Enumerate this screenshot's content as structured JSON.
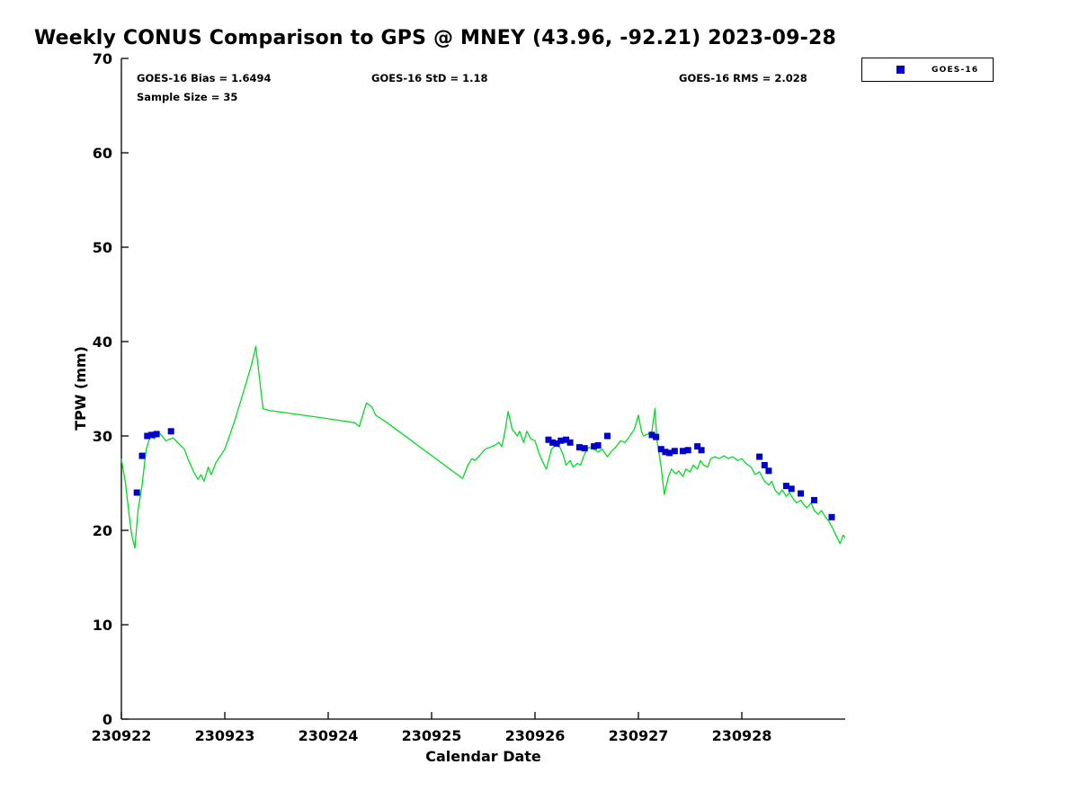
{
  "title": "Weekly CONUS Comparison to GPS @ MNEY (43.96, -92.21) 2023-09-28",
  "annotations": {
    "bias": "GOES-16 Bias = 1.6494",
    "std": "GOES-16 StD = 1.18",
    "rms": "GOES-16 RMS = 2.028",
    "sample": "Sample Size = 35"
  },
  "legend": {
    "label": "GOES-16"
  },
  "colors": {
    "line": "#00dd22",
    "marker": "#0000cc",
    "axis": "#000000"
  },
  "chart_data": {
    "type": "line",
    "title": "Weekly CONUS Comparison to GPS @ MNEY (43.96, -92.21) 2023-09-28",
    "xlabel": "Calendar Date",
    "ylabel": "TPW (mm)",
    "xlim": [
      230922,
      230929
    ],
    "ylim": [
      0,
      70
    ],
    "xticks": [
      230922,
      230923,
      230924,
      230925,
      230926,
      230927,
      230928
    ],
    "yticks": [
      0,
      10,
      20,
      30,
      40,
      50,
      60,
      70
    ],
    "grid": false,
    "legend_position": "top-right-outside",
    "series": [
      {
        "name": "GPS",
        "type": "line",
        "color": "#00dd22",
        "x": [
          230922.0,
          230922.02,
          230922.04,
          230922.07,
          230922.1,
          230922.13,
          230922.16,
          230922.2,
          230922.24,
          230922.28,
          230922.32,
          230922.37,
          230922.43,
          230922.5,
          230922.57,
          230922.61,
          230922.65,
          230922.7,
          230922.74,
          230922.77,
          230922.8,
          230922.84,
          230922.87,
          230922.91,
          230923.0,
          230923.09,
          230923.17,
          230923.26,
          230923.3,
          230923.37,
          230923.43,
          230923.96,
          230924.26,
          230924.3,
          230924.37,
          230924.42,
          230924.46,
          230924.57,
          230925.3,
          230925.35,
          230925.39,
          230925.42,
          230925.52,
          230925.61,
          230925.65,
          230925.68,
          230925.71,
          230925.74,
          230925.78,
          230925.83,
          230925.85,
          230925.89,
          230925.92,
          230925.96,
          230926.0,
          230926.04,
          230926.09,
          230926.11,
          230926.16,
          230926.2,
          230926.24,
          230926.27,
          230926.3,
          230926.34,
          230926.37,
          230926.41,
          230926.44,
          230926.48,
          230926.52,
          230926.57,
          230926.61,
          230926.65,
          230926.7,
          230926.74,
          230926.78,
          230926.83,
          230926.87,
          230926.91,
          230926.96,
          230927.0,
          230927.03,
          230927.05,
          230927.09,
          230927.13,
          230927.16,
          230927.18,
          230927.22,
          230927.25,
          230927.29,
          230927.32,
          230927.36,
          230927.39,
          230927.43,
          230927.46,
          230927.5,
          230927.53,
          230927.57,
          230927.6,
          230927.63,
          230927.67,
          230927.7,
          230927.74,
          230927.78,
          230927.83,
          230927.87,
          230927.91,
          230927.96,
          230928.0,
          230928.04,
          230928.09,
          230928.13,
          230928.17,
          230928.22,
          230928.26,
          230928.29,
          230928.32,
          230928.36,
          230928.39,
          230928.43,
          230928.46,
          230928.5,
          230928.53,
          230928.57,
          230928.6,
          230928.63,
          230928.67,
          230928.7,
          230928.74,
          230928.77,
          230928.81,
          230928.84,
          230928.88,
          230928.91,
          230928.95,
          230928.98,
          230929.0
        ],
        "y": [
          27.6,
          26.2,
          25.0,
          22.0,
          19.5,
          18.1,
          22.0,
          24.8,
          28.6,
          30.0,
          29.7,
          30.3,
          29.5,
          29.8,
          29.0,
          28.6,
          27.4,
          26.2,
          25.4,
          25.9,
          25.2,
          26.7,
          25.9,
          27.1,
          28.6,
          31.4,
          34.3,
          37.6,
          39.5,
          32.9,
          32.7,
          31.9,
          31.4,
          31.0,
          33.5,
          33.1,
          32.2,
          31.4,
          25.5,
          26.9,
          27.6,
          27.4,
          28.6,
          29.0,
          29.3,
          28.9,
          30.5,
          32.6,
          30.7,
          30.0,
          30.5,
          29.3,
          30.5,
          29.7,
          29.5,
          28.1,
          26.9,
          26.5,
          28.6,
          29.0,
          28.8,
          28.1,
          26.9,
          27.4,
          26.7,
          27.1,
          26.9,
          28.1,
          28.8,
          28.6,
          28.3,
          28.6,
          27.8,
          28.4,
          28.8,
          29.5,
          29.3,
          29.9,
          30.7,
          32.2,
          30.5,
          30.0,
          30.2,
          30.5,
          32.9,
          29.5,
          26.7,
          23.8,
          25.7,
          26.5,
          26.0,
          26.3,
          25.7,
          26.5,
          26.2,
          26.9,
          26.5,
          27.4,
          26.9,
          26.7,
          27.6,
          27.8,
          27.6,
          27.9,
          27.6,
          27.8,
          27.4,
          27.6,
          27.1,
          26.7,
          25.9,
          26.2,
          25.2,
          24.8,
          25.2,
          24.3,
          23.8,
          24.3,
          23.6,
          24.0,
          23.3,
          22.9,
          23.2,
          22.7,
          22.4,
          22.9,
          22.1,
          21.7,
          22.1,
          21.4,
          21.0,
          20.2,
          19.5,
          18.6,
          19.5,
          19.2
        ]
      },
      {
        "name": "GOES-16",
        "type": "scatter",
        "marker": "square",
        "color": "#0000cc",
        "x": [
          230922.15,
          230922.2,
          230922.25,
          230922.29,
          230922.34,
          230922.48,
          230926.13,
          230926.17,
          230926.21,
          230926.25,
          230926.3,
          230926.34,
          230926.43,
          230926.48,
          230926.57,
          230926.61,
          230926.7,
          230927.13,
          230927.17,
          230927.22,
          230927.26,
          230927.3,
          230927.35,
          230927.43,
          230927.48,
          230927.57,
          230927.61,
          230928.17,
          230928.22,
          230928.26,
          230928.43,
          230928.48,
          230928.57,
          230928.7,
          230928.87
        ],
        "y": [
          24.0,
          27.9,
          30.0,
          30.1,
          30.2,
          30.5,
          29.6,
          29.3,
          29.2,
          29.5,
          29.6,
          29.3,
          28.8,
          28.7,
          28.9,
          29.0,
          30.0,
          30.1,
          29.9,
          28.6,
          28.3,
          28.2,
          28.4,
          28.4,
          28.5,
          28.9,
          28.5,
          27.8,
          26.9,
          26.3,
          24.7,
          24.4,
          23.9,
          23.2,
          21.4
        ]
      }
    ],
    "stats": {
      "bias": 1.6494,
      "std": 1.18,
      "rms": 2.028,
      "sample_size": 35
    }
  }
}
